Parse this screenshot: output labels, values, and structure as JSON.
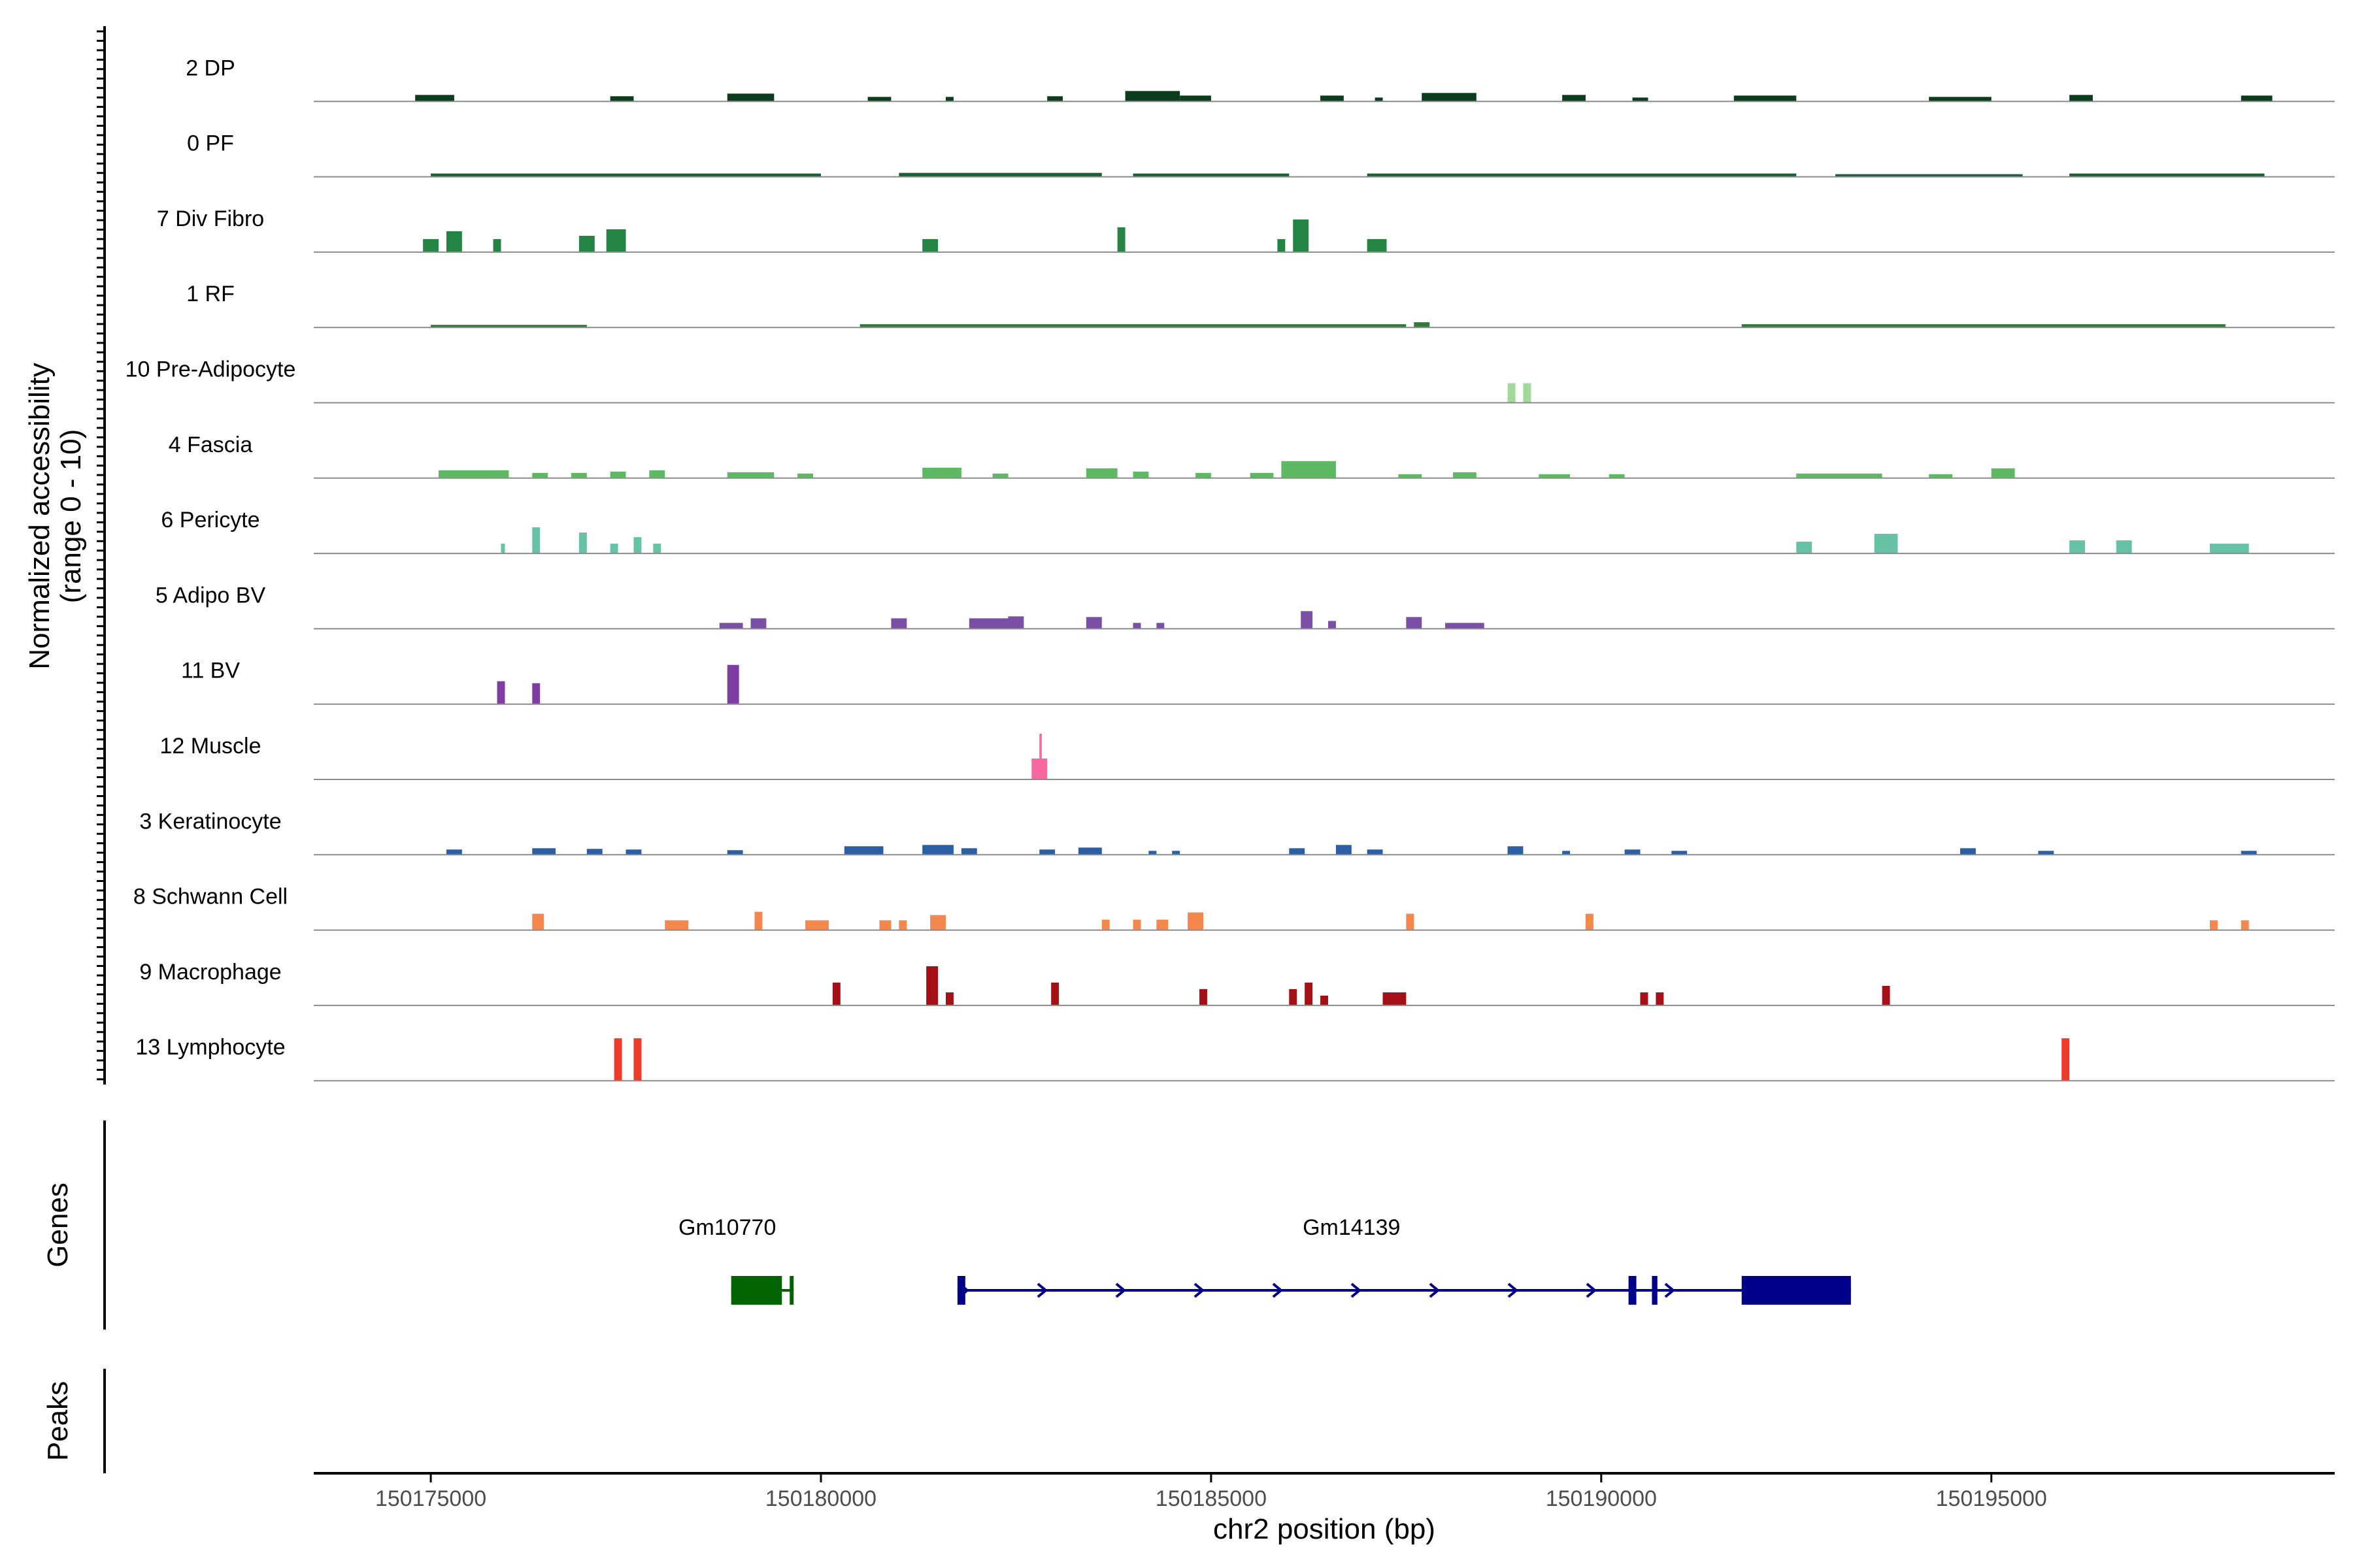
{
  "chart_data": {
    "type": "coverage",
    "ylabel_line1": "Normalized accessibility",
    "ylabel_line2": "(range 0 - 10)",
    "xlabel": "chr2 position (bp)",
    "xlim": [
      150173500,
      150199400
    ],
    "ylim": [
      0,
      10
    ],
    "x_ticks": [
      {
        "value": 150175000,
        "label": "150175000"
      },
      {
        "value": 150180000,
        "label": "150180000"
      },
      {
        "value": 150185000,
        "label": "150185000"
      },
      {
        "value": 150190000,
        "label": "150190000"
      },
      {
        "value": 150195000,
        "label": "150195000"
      }
    ],
    "tracks": [
      {
        "name": "2 DP",
        "color": "#0b3d1c",
        "peaks": [
          [
            150174800,
            150175300,
            1.0
          ],
          [
            150177300,
            150177600,
            0.8
          ],
          [
            150178800,
            150179400,
            1.2
          ],
          [
            150180600,
            150180900,
            0.7
          ],
          [
            150181600,
            150181700,
            0.7
          ],
          [
            150182900,
            150183100,
            0.8
          ],
          [
            150183900,
            150184600,
            1.6
          ],
          [
            150184600,
            150185000,
            0.9
          ],
          [
            150186400,
            150186700,
            0.9
          ],
          [
            150187100,
            150187200,
            0.6
          ],
          [
            150187700,
            150188400,
            1.3
          ],
          [
            150189500,
            150189800,
            1.0
          ],
          [
            150190400,
            150190600,
            0.6
          ],
          [
            150191700,
            150192500,
            0.9
          ],
          [
            150194200,
            150195000,
            0.7
          ],
          [
            150196000,
            150196300,
            1.0
          ],
          [
            150198200,
            150198600,
            0.9
          ]
        ]
      },
      {
        "name": "0 PF",
        "color": "#1a5e36",
        "peaks": [
          [
            150175000,
            150180000,
            0.5
          ],
          [
            150181000,
            150183600,
            0.6
          ],
          [
            150184000,
            150186000,
            0.5
          ],
          [
            150187000,
            150192500,
            0.5
          ],
          [
            150193000,
            150195400,
            0.4
          ],
          [
            150196000,
            150198500,
            0.5
          ]
        ]
      },
      {
        "name": "7 Div Fibro",
        "color": "#238443",
        "peaks": [
          [
            150174900,
            150175100,
            2.0
          ],
          [
            150175200,
            150175400,
            3.2
          ],
          [
            150175800,
            150175900,
            2.0
          ],
          [
            150176900,
            150177100,
            2.5
          ],
          [
            150177250,
            150177500,
            3.5
          ],
          [
            150181300,
            150181500,
            2.0
          ],
          [
            150183800,
            150183900,
            3.8
          ],
          [
            150185850,
            150185950,
            2.0
          ],
          [
            150186050,
            150186250,
            5.0
          ],
          [
            150187000,
            150187250,
            2.0
          ]
        ]
      },
      {
        "name": "1 RF",
        "color": "#2f7a3a",
        "peaks": [
          [
            150175000,
            150177000,
            0.4
          ],
          [
            150180500,
            150187500,
            0.5
          ],
          [
            150187600,
            150187800,
            0.8
          ],
          [
            150191800,
            150198000,
            0.5
          ]
        ]
      },
      {
        "name": "10 Pre-Adipocyte",
        "color": "#a1d99b",
        "peaks": [
          [
            150188800,
            150188900,
            3.0
          ],
          [
            150189000,
            150189100,
            3.0
          ]
        ]
      },
      {
        "name": "4 Fascia",
        "color": "#5dba62",
        "peaks": [
          [
            150175100,
            150176000,
            1.2
          ],
          [
            150176300,
            150176500,
            0.8
          ],
          [
            150176800,
            150177000,
            0.8
          ],
          [
            150177300,
            150177500,
            1.0
          ],
          [
            150177800,
            150178000,
            1.2
          ],
          [
            150178800,
            150179400,
            0.9
          ],
          [
            150179700,
            150179900,
            0.7
          ],
          [
            150181300,
            150181800,
            1.6
          ],
          [
            150182200,
            150182400,
            0.7
          ],
          [
            150183400,
            150183800,
            1.5
          ],
          [
            150184000,
            150184200,
            1.0
          ],
          [
            150184800,
            150185000,
            0.8
          ],
          [
            150185500,
            150185800,
            0.8
          ],
          [
            150185900,
            150186600,
            2.6
          ],
          [
            150187400,
            150187700,
            0.6
          ],
          [
            150188100,
            150188400,
            0.9
          ],
          [
            150189200,
            150189600,
            0.6
          ],
          [
            150190100,
            150190300,
            0.6
          ],
          [
            150192500,
            150193600,
            0.7
          ],
          [
            150194200,
            150194500,
            0.6
          ],
          [
            150195000,
            150195300,
            1.5
          ]
        ]
      },
      {
        "name": "6 Pericyte",
        "color": "#66c2a4",
        "peaks": [
          [
            150175900,
            150175950,
            1.5
          ],
          [
            150176300,
            150176400,
            4.0
          ],
          [
            150176900,
            150177000,
            3.2
          ],
          [
            150177300,
            150177400,
            1.5
          ],
          [
            150177600,
            150177700,
            2.5
          ],
          [
            150177850,
            150177950,
            1.5
          ],
          [
            150192500,
            150192700,
            1.8
          ],
          [
            150193500,
            150193800,
            3.0
          ],
          [
            150196000,
            150196200,
            2.0
          ],
          [
            150196600,
            150196800,
            2.0
          ],
          [
            150197800,
            150198300,
            1.5
          ]
        ]
      },
      {
        "name": "5 Adipo BV",
        "color": "#7b4fa6",
        "peaks": [
          [
            150178700,
            150179000,
            0.9
          ],
          [
            150179100,
            150179300,
            1.6
          ],
          [
            150180900,
            150181100,
            1.6
          ],
          [
            150181900,
            150182400,
            1.6
          ],
          [
            150182400,
            150182600,
            1.9
          ],
          [
            150183400,
            150183600,
            1.8
          ],
          [
            150184000,
            150184100,
            0.9
          ],
          [
            150184300,
            150184400,
            0.9
          ],
          [
            150186150,
            150186300,
            2.7
          ],
          [
            150186500,
            150186600,
            1.2
          ],
          [
            150187500,
            150187700,
            1.8
          ],
          [
            150188000,
            150188500,
            0.9
          ]
        ]
      },
      {
        "name": "11 BV",
        "color": "#7f3da4",
        "peaks": [
          [
            150175850,
            150175950,
            3.5
          ],
          [
            150176300,
            150176400,
            3.2
          ],
          [
            150178800,
            150178950,
            6.0
          ]
        ]
      },
      {
        "name": "12 Muscle",
        "color": "#f768a1",
        "peaks": [
          [
            150182700,
            150182900,
            3.2
          ],
          [
            150182800,
            150182830,
            7.0
          ]
        ]
      },
      {
        "name": "3 Keratinocyte",
        "color": "#2b5fa3",
        "peaks": [
          [
            150175200,
            150175400,
            0.8
          ],
          [
            150176300,
            150176600,
            1.0
          ],
          [
            150177000,
            150177200,
            0.9
          ],
          [
            150177500,
            150177700,
            0.8
          ],
          [
            150178800,
            150179000,
            0.7
          ],
          [
            150180300,
            150180800,
            1.3
          ],
          [
            150181300,
            150181700,
            1.5
          ],
          [
            150181800,
            150182000,
            1.0
          ],
          [
            150182800,
            150183000,
            0.8
          ],
          [
            150183300,
            150183600,
            1.1
          ],
          [
            150184200,
            150184300,
            0.6
          ],
          [
            150184500,
            150184600,
            0.6
          ],
          [
            150186000,
            150186200,
            1.0
          ],
          [
            150186600,
            150186800,
            1.5
          ],
          [
            150187000,
            150187200,
            0.8
          ],
          [
            150188800,
            150189000,
            1.3
          ],
          [
            150189500,
            150189600,
            0.6
          ],
          [
            150190300,
            150190500,
            0.8
          ],
          [
            150190900,
            150191100,
            0.6
          ],
          [
            150194600,
            150194800,
            1.0
          ],
          [
            150195600,
            150195800,
            0.6
          ],
          [
            150198200,
            150198400,
            0.6
          ]
        ]
      },
      {
        "name": "8 Schwann Cell",
        "color": "#f4874b",
        "peaks": [
          [
            150176300,
            150176450,
            2.5
          ],
          [
            150178000,
            150178300,
            1.5
          ],
          [
            150179150,
            150179250,
            2.8
          ],
          [
            150179800,
            150180100,
            1.5
          ],
          [
            150180750,
            150180900,
            1.5
          ],
          [
            150181000,
            150181100,
            1.5
          ],
          [
            150181400,
            150181600,
            2.3
          ],
          [
            150183600,
            150183700,
            1.6
          ],
          [
            150184000,
            150184100,
            1.6
          ],
          [
            150184300,
            150184450,
            1.6
          ],
          [
            150184700,
            150184900,
            2.7
          ],
          [
            150187500,
            150187600,
            2.5
          ],
          [
            150189800,
            150189900,
            2.5
          ],
          [
            150197800,
            150197900,
            1.5
          ],
          [
            150198200,
            150198300,
            1.5
          ]
        ]
      },
      {
        "name": "9 Macrophage",
        "color": "#a50f15",
        "peaks": [
          [
            150180150,
            150180250,
            3.5
          ],
          [
            150181350,
            150181500,
            6.0
          ],
          [
            150181600,
            150181700,
            2.0
          ],
          [
            150182950,
            150183050,
            3.5
          ],
          [
            150184850,
            150184950,
            2.5
          ],
          [
            150186000,
            150186100,
            2.5
          ],
          [
            150186200,
            150186300,
            3.5
          ],
          [
            150186400,
            150186500,
            1.5
          ],
          [
            150187200,
            150187500,
            2.0
          ],
          [
            150190500,
            150190600,
            2.0
          ],
          [
            150190700,
            150190800,
            2.0
          ],
          [
            150193600,
            150193700,
            3.0
          ]
        ]
      },
      {
        "name": "13 Lymphocyte",
        "color": "#ef3b2c",
        "peaks": [
          [
            150177350,
            150177450,
            6.5
          ],
          [
            150177600,
            150177700,
            6.5
          ],
          [
            150195900,
            150196000,
            6.5
          ]
        ]
      }
    ],
    "genes_label": "Genes",
    "peaks_label": "Peaks",
    "genes": [
      {
        "name": "Gm10770",
        "strand": "-",
        "color": "#006400",
        "start": 150178850,
        "end": 150179650,
        "label_pos": 150178800,
        "exons": [
          [
            150178850,
            150179500
          ],
          [
            150179600,
            150179650
          ]
        ]
      },
      {
        "name": "Gm14139",
        "strand": "+",
        "color": "#00008b",
        "start": 150181750,
        "end": 150193200,
        "label_pos": 150186800,
        "exons": [
          [
            150181750,
            150181850
          ],
          [
            150190350,
            150190450
          ],
          [
            150190650,
            150190720
          ],
          [
            150191800,
            150193200
          ]
        ]
      }
    ]
  }
}
